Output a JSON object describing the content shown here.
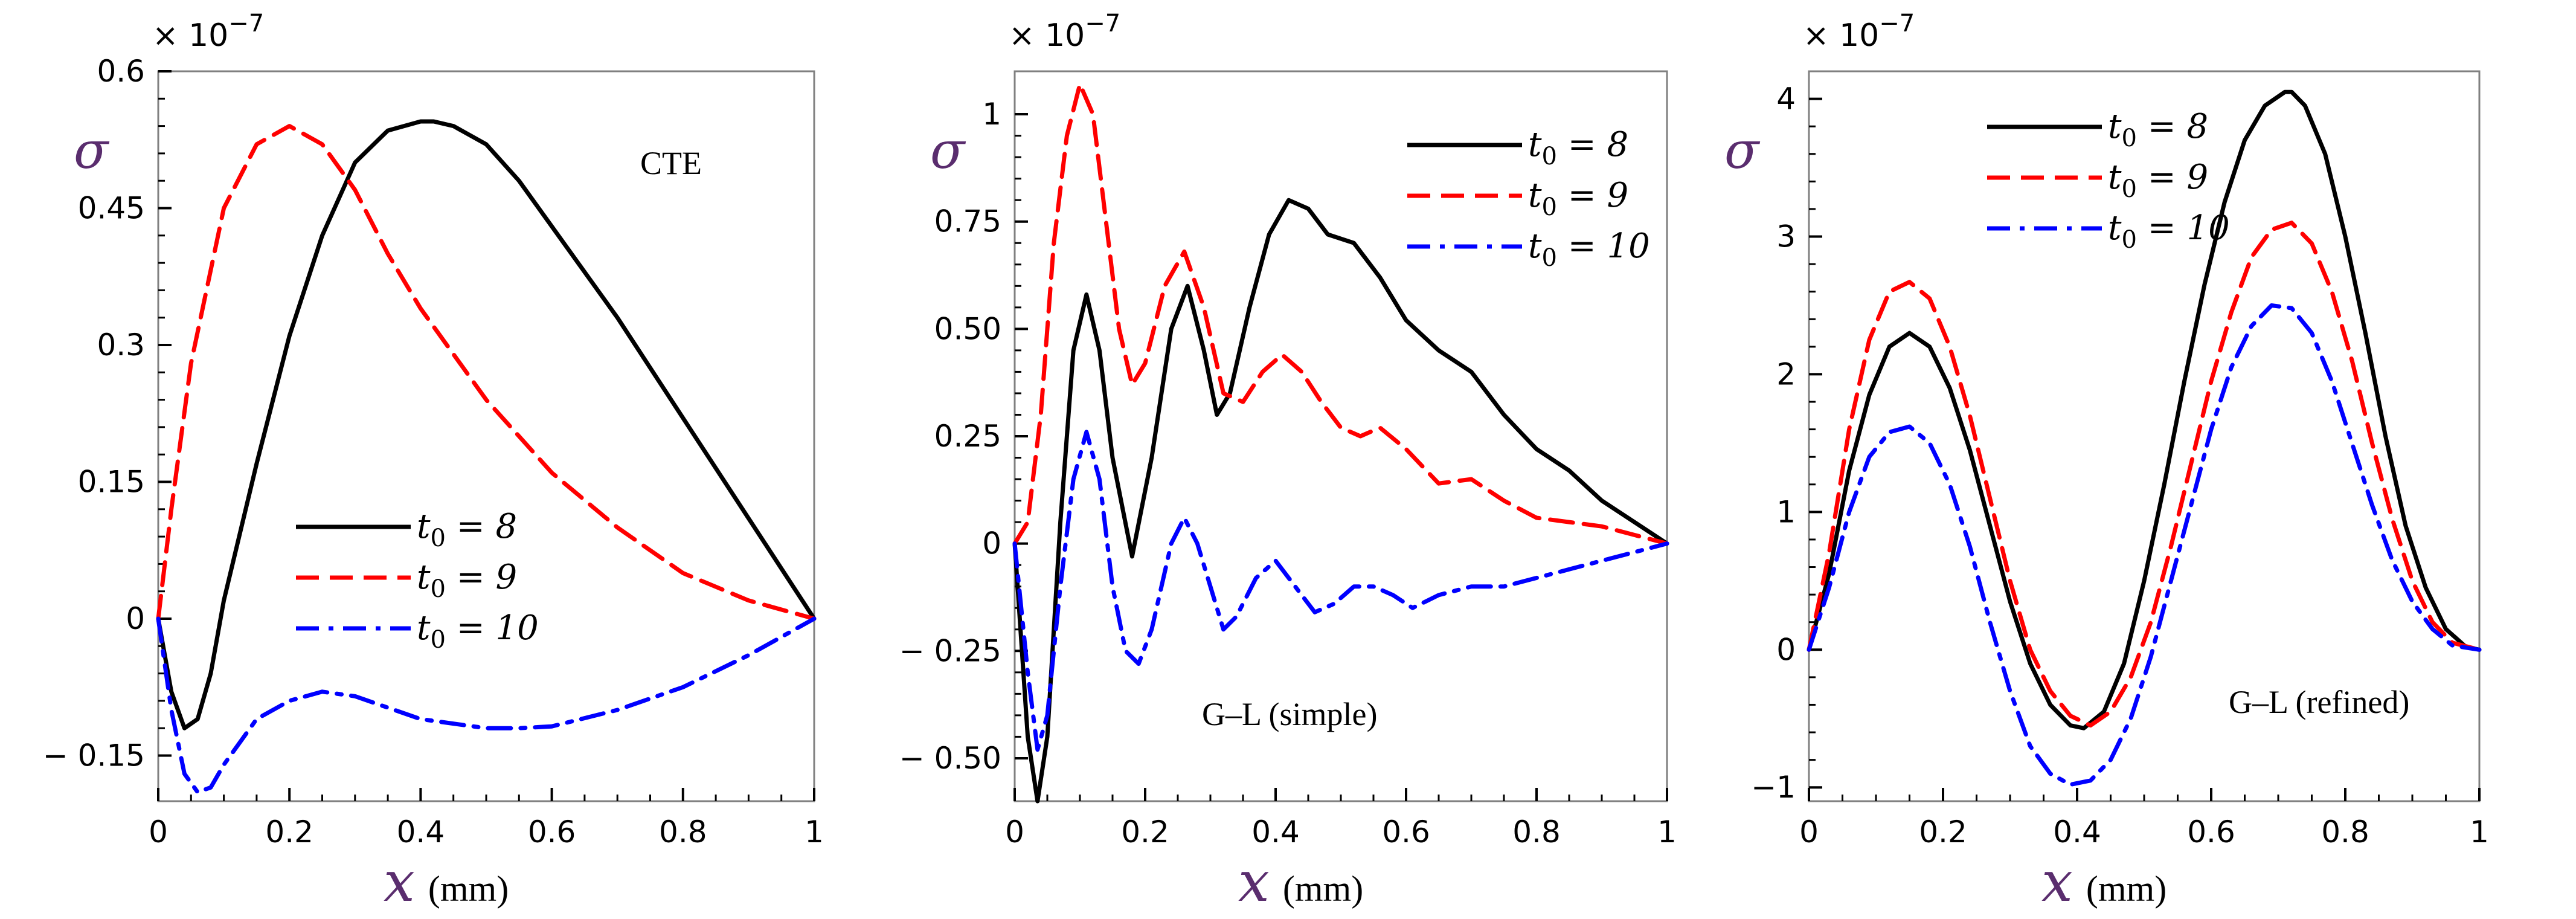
{
  "chart_data": [
    {
      "type": "line",
      "annotation": "CTE",
      "multiplier": {
        "base": "× 10",
        "exponent": "−7"
      },
      "ylabel": "σ",
      "xlabel": {
        "variable": "x",
        "unit": "(mm)"
      },
      "xlim": [
        0,
        1
      ],
      "ylim": [
        -0.2,
        0.6
      ],
      "xticks": [
        0,
        0.2,
        0.4,
        0.6,
        0.8,
        1
      ],
      "xtick_labels": [
        "0",
        "0.2",
        "0.4",
        "0.6",
        "0.8",
        "1"
      ],
      "yticks": [
        -0.15,
        0,
        0.15,
        0.3,
        0.45,
        0.6
      ],
      "ytick_labels": [
        "− 0.15",
        "0",
        "0.15",
        "0.3",
        "0.45",
        "0.6"
      ],
      "legend_position": "center",
      "series": [
        {
          "name": "t0 = 8",
          "var": "t",
          "sub": "0",
          "value": "8",
          "color": "#000000",
          "dash": "solid",
          "x": [
            0,
            0.02,
            0.04,
            0.06,
            0.08,
            0.1,
            0.15,
            0.2,
            0.25,
            0.3,
            0.35,
            0.4,
            0.42,
            0.45,
            0.5,
            0.55,
            0.6,
            0.7,
            0.8,
            0.9,
            1
          ],
          "y": [
            0,
            -0.08,
            -0.12,
            -0.11,
            -0.06,
            0.02,
            0.17,
            0.31,
            0.42,
            0.5,
            0.535,
            0.545,
            0.545,
            0.54,
            0.52,
            0.48,
            0.43,
            0.33,
            0.22,
            0.11,
            0
          ]
        },
        {
          "name": "t0 = 9",
          "var": "t",
          "sub": "0",
          "value": "9",
          "color": "#ff0000",
          "dash": "dash",
          "x": [
            0,
            0.02,
            0.05,
            0.1,
            0.15,
            0.2,
            0.25,
            0.3,
            0.35,
            0.4,
            0.5,
            0.6,
            0.7,
            0.8,
            0.9,
            1
          ],
          "y": [
            0,
            0.12,
            0.28,
            0.45,
            0.52,
            0.54,
            0.52,
            0.47,
            0.4,
            0.34,
            0.24,
            0.16,
            0.1,
            0.05,
            0.02,
            0
          ]
        },
        {
          "name": "t0 = 10",
          "var": "t",
          "sub": "0",
          "value": "10",
          "color": "#0000ff",
          "dash": "dashdot",
          "x": [
            0,
            0.02,
            0.04,
            0.06,
            0.08,
            0.1,
            0.15,
            0.2,
            0.25,
            0.3,
            0.4,
            0.5,
            0.55,
            0.6,
            0.7,
            0.8,
            0.9,
            1
          ],
          "y": [
            0,
            -0.1,
            -0.17,
            -0.19,
            -0.185,
            -0.16,
            -0.11,
            -0.09,
            -0.08,
            -0.085,
            -0.11,
            -0.12,
            -0.12,
            -0.118,
            -0.1,
            -0.075,
            -0.04,
            0
          ]
        }
      ]
    },
    {
      "type": "line",
      "annotation": "G–L (simple)",
      "multiplier": {
        "base": "× 10",
        "exponent": "−7"
      },
      "ylabel": "σ",
      "xlabel": {
        "variable": "x",
        "unit": "(mm)"
      },
      "xlim": [
        0,
        1
      ],
      "ylim": [
        -0.6,
        1.1
      ],
      "xticks": [
        0,
        0.2,
        0.4,
        0.6,
        0.8,
        1
      ],
      "xtick_labels": [
        "0",
        "0.2",
        "0.4",
        "0.6",
        "0.8",
        "1"
      ],
      "yticks": [
        -0.5,
        -0.25,
        0,
        0.25,
        0.5,
        0.75,
        1
      ],
      "ytick_labels": [
        "− 0.50",
        "− 0.25",
        "0",
        "0.25",
        "0.50",
        "0.75",
        "1"
      ],
      "legend_position": "top-right",
      "series": [
        {
          "name": "t0 = 8",
          "var": "t",
          "sub": "0",
          "value": "8",
          "color": "#000000",
          "dash": "solid",
          "x": [
            0,
            0.02,
            0.035,
            0.05,
            0.07,
            0.09,
            0.11,
            0.13,
            0.15,
            0.18,
            0.21,
            0.24,
            0.265,
            0.29,
            0.31,
            0.33,
            0.36,
            0.39,
            0.42,
            0.45,
            0.48,
            0.52,
            0.56,
            0.6,
            0.65,
            0.7,
            0.75,
            0.8,
            0.85,
            0.9,
            0.95,
            1
          ],
          "y": [
            0,
            -0.45,
            -0.6,
            -0.45,
            0.05,
            0.45,
            0.58,
            0.45,
            0.2,
            -0.03,
            0.2,
            0.5,
            0.6,
            0.45,
            0.3,
            0.35,
            0.55,
            0.72,
            0.8,
            0.78,
            0.72,
            0.7,
            0.62,
            0.52,
            0.45,
            0.4,
            0.3,
            0.22,
            0.17,
            0.1,
            0.05,
            0
          ]
        },
        {
          "name": "t0 = 9",
          "var": "t",
          "sub": "0",
          "value": "9",
          "color": "#ff0000",
          "dash": "dash",
          "x": [
            0,
            0.02,
            0.04,
            0.06,
            0.08,
            0.1,
            0.12,
            0.14,
            0.16,
            0.18,
            0.2,
            0.23,
            0.26,
            0.29,
            0.32,
            0.35,
            0.38,
            0.41,
            0.44,
            0.47,
            0.5,
            0.53,
            0.56,
            0.6,
            0.65,
            0.7,
            0.75,
            0.8,
            0.85,
            0.9,
            0.95,
            1
          ],
          "y": [
            0,
            0.05,
            0.3,
            0.7,
            0.95,
            1.07,
            1.0,
            0.75,
            0.5,
            0.37,
            0.42,
            0.6,
            0.68,
            0.55,
            0.35,
            0.33,
            0.4,
            0.44,
            0.4,
            0.33,
            0.27,
            0.25,
            0.27,
            0.22,
            0.14,
            0.15,
            0.1,
            0.06,
            0.05,
            0.04,
            0.02,
            0
          ]
        },
        {
          "name": "t0 = 10",
          "var": "t",
          "sub": "0",
          "value": "10",
          "color": "#0000ff",
          "dash": "dashdot",
          "x": [
            0,
            0.02,
            0.035,
            0.05,
            0.07,
            0.09,
            0.11,
            0.13,
            0.15,
            0.17,
            0.19,
            0.21,
            0.24,
            0.26,
            0.28,
            0.3,
            0.32,
            0.34,
            0.37,
            0.4,
            0.43,
            0.46,
            0.49,
            0.52,
            0.55,
            0.58,
            0.61,
            0.65,
            0.7,
            0.75,
            0.8,
            0.85,
            0.9,
            0.95,
            1
          ],
          "y": [
            0,
            -0.3,
            -0.48,
            -0.4,
            -0.1,
            0.15,
            0.26,
            0.15,
            -0.1,
            -0.25,
            -0.28,
            -0.2,
            0.0,
            0.06,
            0.0,
            -0.1,
            -0.2,
            -0.17,
            -0.08,
            -0.04,
            -0.1,
            -0.16,
            -0.14,
            -0.1,
            -0.1,
            -0.12,
            -0.15,
            -0.12,
            -0.1,
            -0.1,
            -0.08,
            -0.06,
            -0.04,
            -0.02,
            0
          ]
        }
      ]
    },
    {
      "type": "line",
      "annotation": "G–L (refined)",
      "multiplier": {
        "base": "× 10",
        "exponent": "−7"
      },
      "ylabel": "σ",
      "xlabel": {
        "variable": "x",
        "unit": "(mm)"
      },
      "xlim": [
        0,
        1
      ],
      "ylim": [
        -1.1,
        4.2
      ],
      "xticks": [
        0,
        0.2,
        0.4,
        0.6,
        0.8,
        1
      ],
      "xtick_labels": [
        "0",
        "0.2",
        "0.4",
        "0.6",
        "0.8",
        "1"
      ],
      "yticks": [
        -1,
        0,
        1,
        2,
        3,
        4
      ],
      "ytick_labels": [
        "−1",
        "0",
        "1",
        "2",
        "3",
        "4"
      ],
      "legend_position": "top-left",
      "series": [
        {
          "name": "t0 = 8",
          "var": "t",
          "sub": "0",
          "value": "8",
          "color": "#000000",
          "dash": "solid",
          "x": [
            0,
            0.03,
            0.06,
            0.09,
            0.12,
            0.15,
            0.18,
            0.21,
            0.24,
            0.27,
            0.3,
            0.33,
            0.36,
            0.39,
            0.41,
            0.44,
            0.47,
            0.5,
            0.53,
            0.56,
            0.59,
            0.62,
            0.65,
            0.68,
            0.71,
            0.72,
            0.74,
            0.77,
            0.8,
            0.83,
            0.86,
            0.89,
            0.92,
            0.95,
            0.98,
            1
          ],
          "y": [
            0,
            0.55,
            1.3,
            1.85,
            2.2,
            2.3,
            2.2,
            1.9,
            1.45,
            0.9,
            0.35,
            -0.1,
            -0.4,
            -0.55,
            -0.57,
            -0.45,
            -0.1,
            0.5,
            1.2,
            1.95,
            2.65,
            3.25,
            3.7,
            3.95,
            4.05,
            4.05,
            3.95,
            3.6,
            3.0,
            2.3,
            1.55,
            0.9,
            0.45,
            0.15,
            0.02,
            0
          ]
        },
        {
          "name": "t0 = 9",
          "var": "t",
          "sub": "0",
          "value": "9",
          "color": "#ff0000",
          "dash": "dash",
          "x": [
            0,
            0.03,
            0.06,
            0.09,
            0.12,
            0.15,
            0.18,
            0.21,
            0.24,
            0.27,
            0.3,
            0.33,
            0.36,
            0.39,
            0.42,
            0.45,
            0.48,
            0.51,
            0.54,
            0.57,
            0.6,
            0.63,
            0.66,
            0.69,
            0.72,
            0.75,
            0.78,
            0.81,
            0.84,
            0.87,
            0.9,
            0.93,
            0.96,
            1
          ],
          "y": [
            0,
            0.7,
            1.6,
            2.25,
            2.6,
            2.67,
            2.55,
            2.2,
            1.7,
            1.1,
            0.5,
            0.0,
            -0.3,
            -0.48,
            -0.55,
            -0.45,
            -0.2,
            0.2,
            0.75,
            1.35,
            1.95,
            2.45,
            2.85,
            3.05,
            3.1,
            2.95,
            2.6,
            2.1,
            1.5,
            0.95,
            0.5,
            0.2,
            0.05,
            0
          ]
        },
        {
          "name": "t0 = 10",
          "var": "t",
          "sub": "0",
          "value": "10",
          "color": "#0000ff",
          "dash": "dashdot",
          "x": [
            0,
            0.03,
            0.06,
            0.09,
            0.12,
            0.15,
            0.18,
            0.21,
            0.24,
            0.27,
            0.3,
            0.33,
            0.36,
            0.39,
            0.42,
            0.45,
            0.48,
            0.51,
            0.54,
            0.57,
            0.6,
            0.63,
            0.66,
            0.69,
            0.72,
            0.75,
            0.78,
            0.81,
            0.84,
            0.87,
            0.9,
            0.93,
            0.96,
            1
          ],
          "y": [
            0,
            0.45,
            1.0,
            1.4,
            1.58,
            1.62,
            1.5,
            1.2,
            0.75,
            0.2,
            -0.3,
            -0.7,
            -0.9,
            -0.98,
            -0.95,
            -0.8,
            -0.5,
            -0.05,
            0.5,
            1.05,
            1.6,
            2.05,
            2.35,
            2.5,
            2.48,
            2.3,
            1.95,
            1.5,
            1.05,
            0.65,
            0.35,
            0.15,
            0.03,
            0
          ]
        }
      ]
    }
  ]
}
